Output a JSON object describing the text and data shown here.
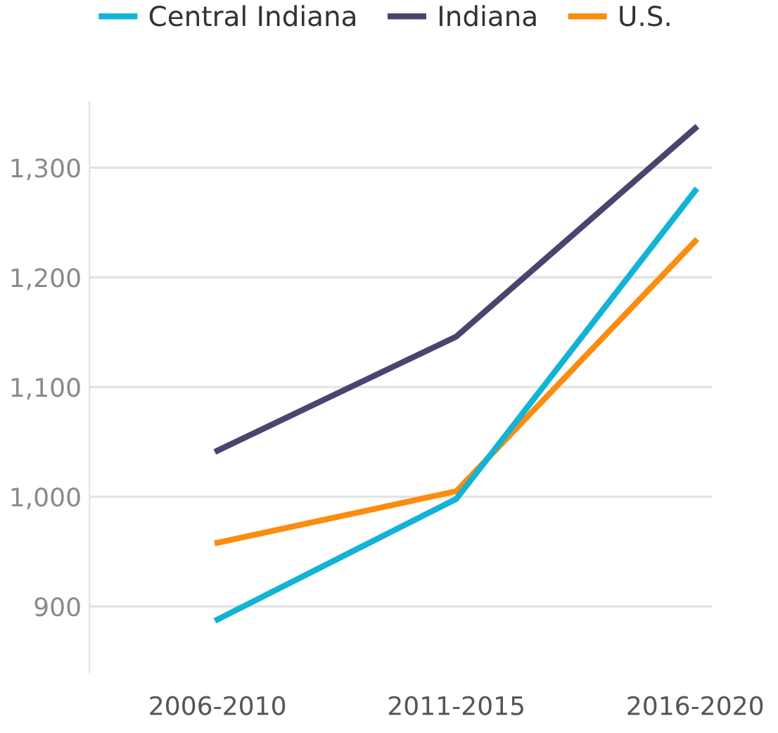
{
  "chart_data": {
    "type": "line",
    "categories": [
      "2006-2010",
      "2011-2015",
      "2016-2020"
    ],
    "series": [
      {
        "name": "Central Indiana",
        "color": "#12b3d6",
        "values": [
          888,
          998,
          1279
        ]
      },
      {
        "name": "Indiana",
        "color": "#4b4470",
        "values": [
          1042,
          1146,
          1336
        ]
      },
      {
        "name": "U.S.",
        "color": "#fb8c0f",
        "values": [
          958,
          1005,
          1233
        ]
      }
    ],
    "ylim": [
      840,
      1360
    ],
    "yticks": [
      {
        "value": 900,
        "label": "900"
      },
      {
        "value": 1000,
        "label": "1,000"
      },
      {
        "value": 1100,
        "label": "1,100"
      },
      {
        "value": 1200,
        "label": "1,200"
      },
      {
        "value": 1300,
        "label": "1,300"
      }
    ],
    "grid": "y",
    "legend": "top left",
    "marker": "none",
    "line_style": "solid"
  }
}
